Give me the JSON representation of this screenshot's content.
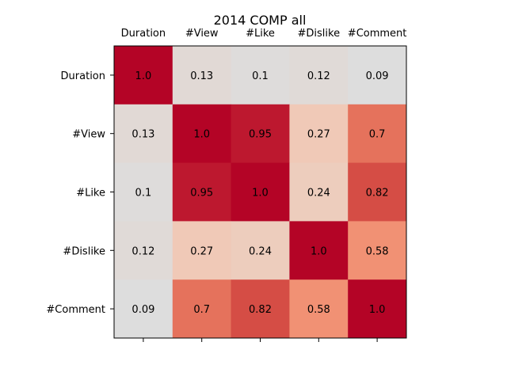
{
  "chart_data": {
    "type": "heatmap",
    "title": "2014 COMP all",
    "x_labels": [
      "Duration",
      "#View",
      "#Like",
      "#Dislike",
      "#Comment"
    ],
    "y_labels": [
      "Duration",
      "#View",
      "#Like",
      "#Dislike",
      "#Comment"
    ],
    "matrix": [
      [
        1.0,
        0.13,
        0.1,
        0.12,
        0.09
      ],
      [
        0.13,
        1.0,
        0.95,
        0.27,
        0.7
      ],
      [
        0.1,
        0.95,
        1.0,
        0.24,
        0.82
      ],
      [
        0.12,
        0.27,
        0.24,
        1.0,
        0.58
      ],
      [
        0.09,
        0.7,
        0.82,
        0.58,
        1.0
      ]
    ],
    "cell_labels": [
      [
        "1.0",
        "0.13",
        "0.1",
        "0.12",
        "0.09"
      ],
      [
        "0.13",
        "1.0",
        "0.95",
        "0.27",
        "0.7"
      ],
      [
        "0.1",
        "0.95",
        "1.0",
        "0.24",
        "0.82"
      ],
      [
        "0.12",
        "0.27",
        "0.24",
        "1.0",
        "0.58"
      ],
      [
        "0.09",
        "0.7",
        "0.82",
        "0.58",
        "1.0"
      ]
    ],
    "colormap": "coolwarm",
    "x_tick_labels_position": "top",
    "grid": false
  }
}
